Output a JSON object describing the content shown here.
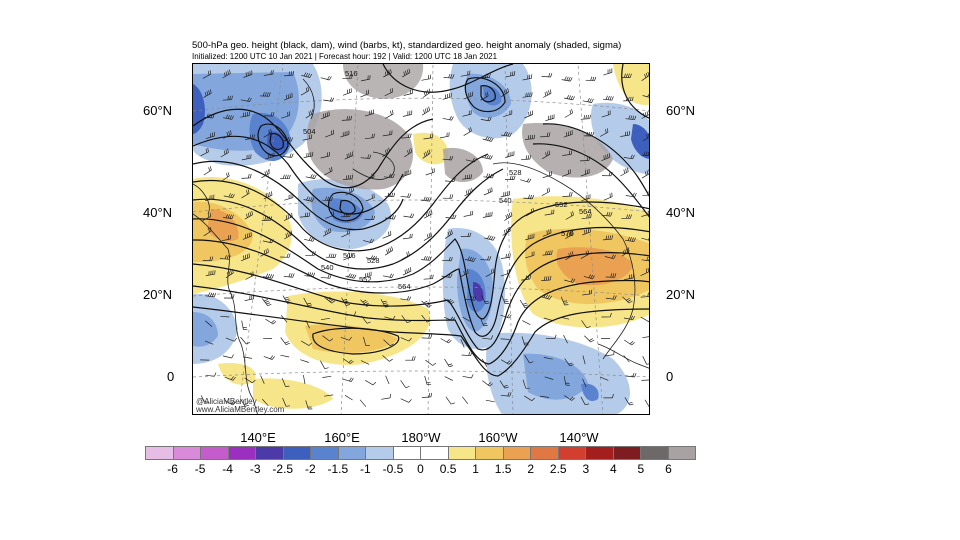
{
  "title": "500-hPa geo. height (black, dam), wind (barbs, kt), standardized geo. height anomaly (shaded, sigma)",
  "subtitle": "Initialized: 1200 UTC 10 Jan 2021 | Forecast hour: 192 | Valid: 1200 UTC 18 Jan 2021",
  "lat_labels": [
    "60°N",
    "40°N",
    "20°N",
    "0"
  ],
  "lon_labels": [
    "140°E",
    "160°E",
    "180°W",
    "160°W",
    "140°W"
  ],
  "contour_labels": [
    "516",
    "504",
    "528",
    "540",
    "552",
    "564",
    "576",
    "516",
    "528",
    "540",
    "552",
    "564"
  ],
  "credit": [
    "@AliciaMBentley",
    "www.AliciaMBentley.com"
  ],
  "colorbar": {
    "labels": [
      "-6",
      "-5",
      "-4",
      "-3",
      "-2.5",
      "-2",
      "-1.5",
      "-1",
      "-0.5",
      "0",
      "0.5",
      "1",
      "1.5",
      "2",
      "2.5",
      "3",
      "4",
      "5",
      "6"
    ],
    "colors": [
      "#e5bde5",
      "#d98ad9",
      "#c45ccc",
      "#9b2fc0",
      "#4b3aa8",
      "#3d5fbd",
      "#5a83cf",
      "#83a7dd",
      "#b4cbe9",
      "#ffffff",
      "#ffffff",
      "#f7e589",
      "#f0c661",
      "#eaa152",
      "#e07844",
      "#d23f2f",
      "#a51e1e",
      "#7d1d22",
      "#6e6868",
      "#a9a2a2"
    ]
  }
}
